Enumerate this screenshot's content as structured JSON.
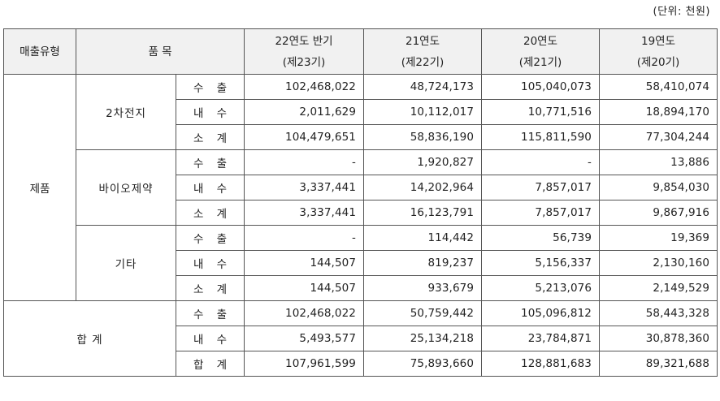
{
  "unit_note": "(단위: 천원)",
  "headers": {
    "sales_type": "매출유형",
    "item": "품 목",
    "periods": [
      {
        "year": "22연도 반기",
        "term": "(제23기)"
      },
      {
        "year": "21연도",
        "term": "(제22기)"
      },
      {
        "year": "20연도",
        "term": "(제21기)"
      },
      {
        "year": "19연도",
        "term": "(제20기)"
      }
    ]
  },
  "groups": [
    {
      "sales_type": "제품",
      "categories": [
        {
          "name": "2차전지",
          "rows": [
            {
              "label": "수 출",
              "values": [
                "102,468,022",
                "48,724,173",
                "105,040,073",
                "58,410,074"
              ]
            },
            {
              "label": "내 수",
              "values": [
                "2,011,629",
                "10,112,017",
                "10,771,516",
                "18,894,170"
              ]
            },
            {
              "label": "소 계",
              "values": [
                "104,479,651",
                "58,836,190",
                "115,811,590",
                "77,304,244"
              ]
            }
          ]
        },
        {
          "name": "바이오제약",
          "rows": [
            {
              "label": "수 출",
              "values": [
                "-",
                "1,920,827",
                "-",
                "13,886"
              ]
            },
            {
              "label": "내 수",
              "values": [
                "3,337,441",
                "14,202,964",
                "7,857,017",
                "9,854,030"
              ]
            },
            {
              "label": "소 계",
              "values": [
                "3,337,441",
                "16,123,791",
                "7,857,017",
                "9,867,916"
              ]
            }
          ]
        },
        {
          "name": "기타",
          "rows": [
            {
              "label": "수 출",
              "values": [
                "-",
                "114,442",
                "56,739",
                "19,369"
              ]
            },
            {
              "label": "내 수",
              "values": [
                "144,507",
                "819,237",
                "5,156,337",
                "2,130,160"
              ]
            },
            {
              "label": "소 계",
              "values": [
                "144,507",
                "933,679",
                "5,213,076",
                "2,149,529"
              ]
            }
          ]
        }
      ]
    }
  ],
  "total": {
    "name": "합 계",
    "rows": [
      {
        "label": "수 출",
        "values": [
          "102,468,022",
          "50,759,442",
          "105,096,812",
          "58,443,328"
        ]
      },
      {
        "label": "내 수",
        "values": [
          "5,493,577",
          "25,134,218",
          "23,784,871",
          "30,878,360"
        ]
      },
      {
        "label": "합 계",
        "values": [
          "107,961,599",
          "75,893,660",
          "128,881,683",
          "89,321,688"
        ]
      }
    ]
  }
}
